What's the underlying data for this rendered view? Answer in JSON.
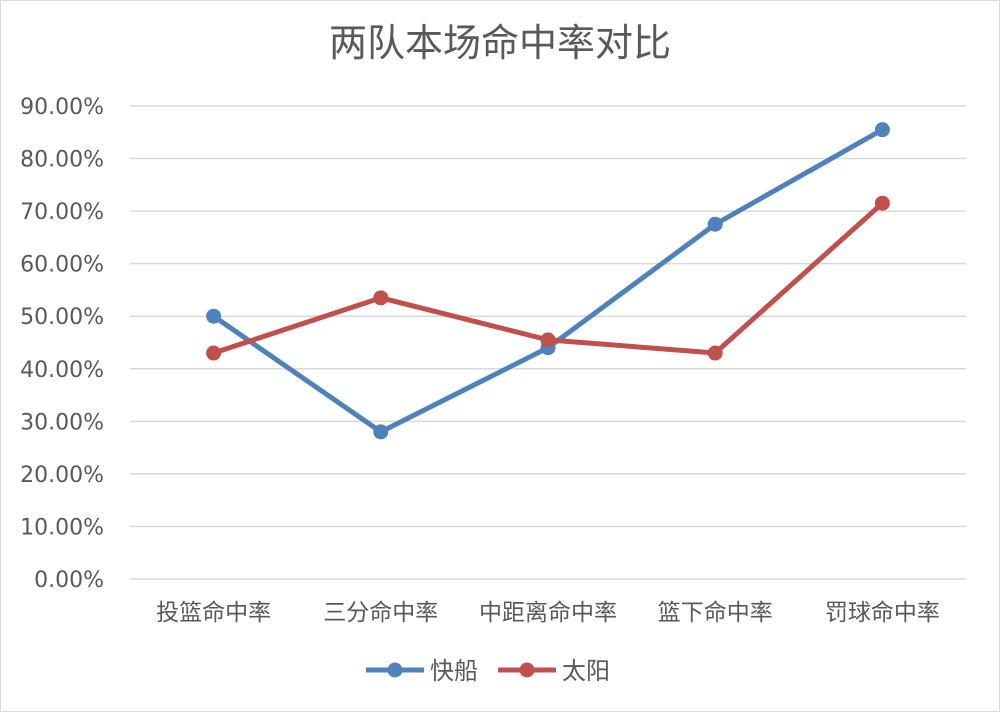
{
  "chart_data": {
    "type": "line",
    "title": "两队本场命中率对比",
    "xlabel": "",
    "ylabel": "",
    "categories": [
      "投篮命中率",
      "三分命中率",
      "中距离命中率",
      "篮下命中率",
      "罚球命中率"
    ],
    "ylim": [
      0,
      0.9
    ],
    "yticks": [
      "0.00%",
      "10.00%",
      "20.00%",
      "30.00%",
      "40.00%",
      "50.00%",
      "60.00%",
      "70.00%",
      "80.00%",
      "90.00%"
    ],
    "grid": true,
    "legend_position": "bottom",
    "series": [
      {
        "name": "快船",
        "color": "#4f81bd",
        "values": [
          0.5,
          0.28,
          0.44,
          0.675,
          0.855
        ]
      },
      {
        "name": "太阳",
        "color": "#c0504d",
        "values": [
          0.43,
          0.535,
          0.455,
          0.43,
          0.715
        ]
      }
    ]
  }
}
